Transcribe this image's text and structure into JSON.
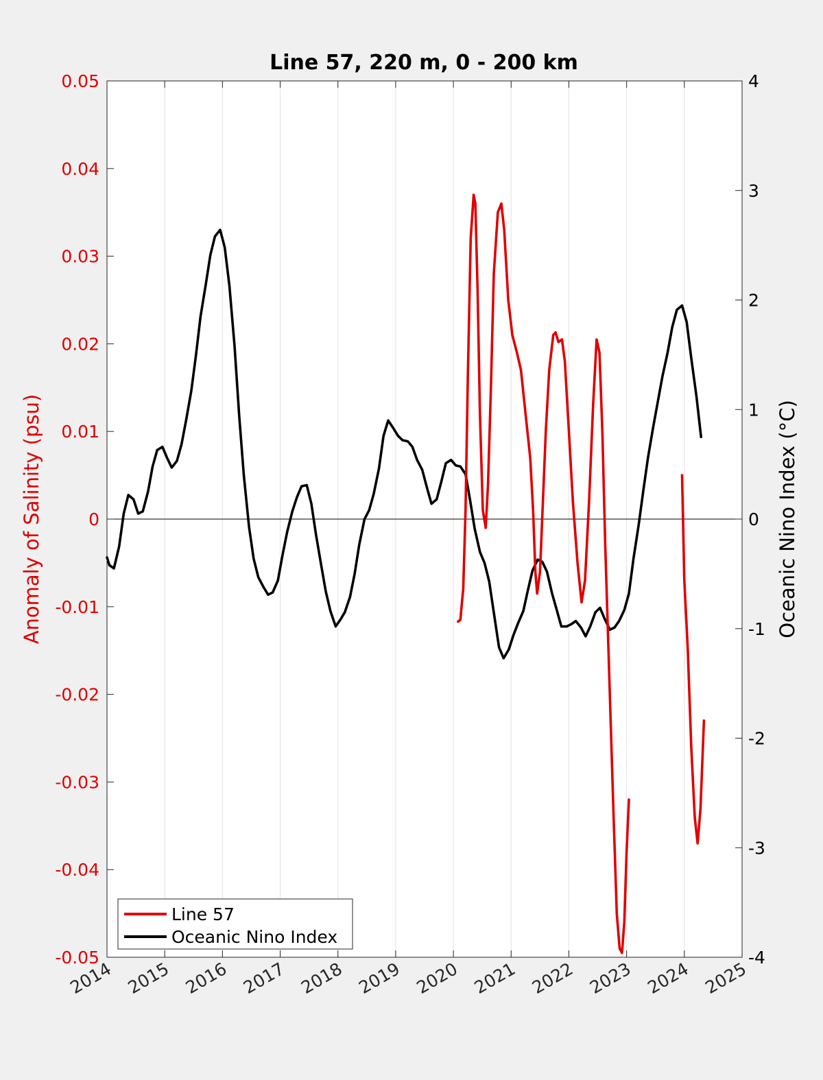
{
  "chart_data": {
    "type": "line",
    "title": "Line 57, 220 m, 0 - 200 km",
    "xlabel": "",
    "ylabel_left": "Anomaly of Salinity (psu)",
    "ylabel_right": "Oceanic Nino Index (°C)",
    "xlim": [
      2014,
      2025
    ],
    "ylim_left": [
      -0.05,
      0.05
    ],
    "ylim_right": [
      -4,
      4
    ],
    "x_ticks": [
      "2014",
      "2015",
      "2016",
      "2017",
      "2018",
      "2019",
      "2020",
      "2021",
      "2022",
      "2023",
      "2024",
      "2025"
    ],
    "y_left_ticks": [
      "0.05",
      "0.04",
      "0.03",
      "0.02",
      "0.01",
      "0",
      "-0.01",
      "-0.02",
      "-0.03",
      "-0.04",
      "-0.05"
    ],
    "y_right_ticks": [
      "4",
      "3",
      "2",
      "1",
      "0",
      "-1",
      "-2",
      "-3",
      "-4"
    ],
    "grid": "vertical only",
    "zero_line": true,
    "legend_position": "bottom-left",
    "colors": {
      "left_axis": "#e00000",
      "right_axis": "#000000",
      "line57": "#e00000",
      "oni": "#000000",
      "plot_bg": "#ffffff",
      "figure_bg": "#f0f0f0",
      "grid": "#e6e6e6"
    },
    "series": [
      {
        "name": "Line 57",
        "axis": "left",
        "points": [
          {
            "x": 2020.08,
            "y": -0.0117
          },
          {
            "x": 2020.12,
            "y": -0.0115
          },
          {
            "x": 2020.17,
            "y": -0.008
          },
          {
            "x": 2020.21,
            "y": 0.001
          },
          {
            "x": 2020.25,
            "y": 0.016
          },
          {
            "x": 2020.3,
            "y": 0.032
          },
          {
            "x": 2020.35,
            "y": 0.037
          },
          {
            "x": 2020.38,
            "y": 0.036
          },
          {
            "x": 2020.42,
            "y": 0.026
          },
          {
            "x": 2020.46,
            "y": 0.012
          },
          {
            "x": 2020.51,
            "y": 0.001
          },
          {
            "x": 2020.56,
            "y": -0.001
          },
          {
            "x": 2020.6,
            "y": 0.004
          },
          {
            "x": 2020.65,
            "y": 0.015
          },
          {
            "x": 2020.7,
            "y": 0.028
          },
          {
            "x": 2020.77,
            "y": 0.035
          },
          {
            "x": 2020.83,
            "y": 0.036
          },
          {
            "x": 2020.88,
            "y": 0.033
          },
          {
            "x": 2020.95,
            "y": 0.025
          },
          {
            "x": 2021.02,
            "y": 0.021
          },
          {
            "x": 2021.1,
            "y": 0.019
          },
          {
            "x": 2021.17,
            "y": 0.017
          },
          {
            "x": 2021.25,
            "y": 0.012
          },
          {
            "x": 2021.33,
            "y": 0.007
          },
          {
            "x": 2021.38,
            "y": 0.001
          },
          {
            "x": 2021.42,
            "y": -0.006
          },
          {
            "x": 2021.45,
            "y": -0.0085
          },
          {
            "x": 2021.5,
            "y": -0.006
          },
          {
            "x": 2021.55,
            "y": 0.002
          },
          {
            "x": 2021.6,
            "y": 0.01
          },
          {
            "x": 2021.66,
            "y": 0.017
          },
          {
            "x": 2021.73,
            "y": 0.021
          },
          {
            "x": 2021.77,
            "y": 0.0213
          },
          {
            "x": 2021.82,
            "y": 0.0202
          },
          {
            "x": 2021.88,
            "y": 0.0205
          },
          {
            "x": 2021.93,
            "y": 0.018
          },
          {
            "x": 2022.0,
            "y": 0.01
          },
          {
            "x": 2022.07,
            "y": 0.002
          },
          {
            "x": 2022.15,
            "y": -0.005
          },
          {
            "x": 2022.22,
            "y": -0.0095
          },
          {
            "x": 2022.28,
            "y": -0.007
          },
          {
            "x": 2022.35,
            "y": 0.002
          },
          {
            "x": 2022.42,
            "y": 0.013
          },
          {
            "x": 2022.48,
            "y": 0.0205
          },
          {
            "x": 2022.53,
            "y": 0.019
          },
          {
            "x": 2022.58,
            "y": 0.01
          },
          {
            "x": 2022.63,
            "y": -0.003
          },
          {
            "x": 2022.7,
            "y": -0.018
          },
          {
            "x": 2022.77,
            "y": -0.033
          },
          {
            "x": 2022.83,
            "y": -0.045
          },
          {
            "x": 2022.88,
            "y": -0.049
          },
          {
            "x": 2022.92,
            "y": -0.0495
          },
          {
            "x": 2022.96,
            "y": -0.046
          },
          {
            "x": 2023.0,
            "y": -0.038
          },
          {
            "x": 2023.04,
            "y": -0.032
          },
          {
            "x": 2023.96,
            "y": 0.005
          },
          {
            "x": 2024.0,
            "y": -0.007
          },
          {
            "x": 2024.06,
            "y": -0.015
          },
          {
            "x": 2024.12,
            "y": -0.026
          },
          {
            "x": 2024.18,
            "y": -0.034
          },
          {
            "x": 2024.23,
            "y": -0.037
          },
          {
            "x": 2024.28,
            "y": -0.033
          },
          {
            "x": 2024.34,
            "y": -0.023
          }
        ]
      },
      {
        "name": "Oceanic Nino Index",
        "axis": "right",
        "points": [
          {
            "x": 2014.0,
            "y": -0.35
          },
          {
            "x": 2014.04,
            "y": -0.42
          },
          {
            "x": 2014.12,
            "y": -0.45
          },
          {
            "x": 2014.21,
            "y": -0.25
          },
          {
            "x": 2014.29,
            "y": 0.05
          },
          {
            "x": 2014.37,
            "y": 0.22
          },
          {
            "x": 2014.46,
            "y": 0.18
          },
          {
            "x": 2014.54,
            "y": 0.05
          },
          {
            "x": 2014.62,
            "y": 0.07
          },
          {
            "x": 2014.71,
            "y": 0.25
          },
          {
            "x": 2014.79,
            "y": 0.48
          },
          {
            "x": 2014.87,
            "y": 0.63
          },
          {
            "x": 2014.96,
            "y": 0.66
          },
          {
            "x": 2015.04,
            "y": 0.56
          },
          {
            "x": 2015.12,
            "y": 0.47
          },
          {
            "x": 2015.21,
            "y": 0.53
          },
          {
            "x": 2015.29,
            "y": 0.68
          },
          {
            "x": 2015.37,
            "y": 0.9
          },
          {
            "x": 2015.46,
            "y": 1.17
          },
          {
            "x": 2015.54,
            "y": 1.49
          },
          {
            "x": 2015.62,
            "y": 1.85
          },
          {
            "x": 2015.71,
            "y": 2.14
          },
          {
            "x": 2015.79,
            "y": 2.41
          },
          {
            "x": 2015.87,
            "y": 2.58
          },
          {
            "x": 2015.96,
            "y": 2.64
          },
          {
            "x": 2016.04,
            "y": 2.48
          },
          {
            "x": 2016.12,
            "y": 2.13
          },
          {
            "x": 2016.21,
            "y": 1.58
          },
          {
            "x": 2016.29,
            "y": 0.94
          },
          {
            "x": 2016.37,
            "y": 0.4
          },
          {
            "x": 2016.46,
            "y": -0.07
          },
          {
            "x": 2016.54,
            "y": -0.36
          },
          {
            "x": 2016.62,
            "y": -0.53
          },
          {
            "x": 2016.71,
            "y": -0.62
          },
          {
            "x": 2016.79,
            "y": -0.69
          },
          {
            "x": 2016.87,
            "y": -0.67
          },
          {
            "x": 2016.96,
            "y": -0.56
          },
          {
            "x": 2017.04,
            "y": -0.33
          },
          {
            "x": 2017.12,
            "y": -0.12
          },
          {
            "x": 2017.21,
            "y": 0.07
          },
          {
            "x": 2017.29,
            "y": 0.2
          },
          {
            "x": 2017.37,
            "y": 0.3
          },
          {
            "x": 2017.46,
            "y": 0.31
          },
          {
            "x": 2017.54,
            "y": 0.14
          },
          {
            "x": 2017.62,
            "y": -0.14
          },
          {
            "x": 2017.71,
            "y": -0.42
          },
          {
            "x": 2017.79,
            "y": -0.66
          },
          {
            "x": 2017.87,
            "y": -0.84
          },
          {
            "x": 2017.96,
            "y": -0.98
          },
          {
            "x": 2018.04,
            "y": -0.92
          },
          {
            "x": 2018.12,
            "y": -0.85
          },
          {
            "x": 2018.21,
            "y": -0.71
          },
          {
            "x": 2018.29,
            "y": -0.5
          },
          {
            "x": 2018.37,
            "y": -0.23
          },
          {
            "x": 2018.46,
            "y": 0.0
          },
          {
            "x": 2018.54,
            "y": 0.08
          },
          {
            "x": 2018.62,
            "y": 0.23
          },
          {
            "x": 2018.71,
            "y": 0.46
          },
          {
            "x": 2018.79,
            "y": 0.76
          },
          {
            "x": 2018.87,
            "y": 0.9
          },
          {
            "x": 2018.96,
            "y": 0.83
          },
          {
            "x": 2019.04,
            "y": 0.76
          },
          {
            "x": 2019.12,
            "y": 0.72
          },
          {
            "x": 2019.21,
            "y": 0.71
          },
          {
            "x": 2019.29,
            "y": 0.66
          },
          {
            "x": 2019.37,
            "y": 0.54
          },
          {
            "x": 2019.46,
            "y": 0.45
          },
          {
            "x": 2019.54,
            "y": 0.29
          },
          {
            "x": 2019.62,
            "y": 0.14
          },
          {
            "x": 2019.71,
            "y": 0.18
          },
          {
            "x": 2019.79,
            "y": 0.34
          },
          {
            "x": 2019.87,
            "y": 0.51
          },
          {
            "x": 2019.96,
            "y": 0.54
          },
          {
            "x": 2020.04,
            "y": 0.49
          },
          {
            "x": 2020.12,
            "y": 0.48
          },
          {
            "x": 2020.21,
            "y": 0.41
          },
          {
            "x": 2020.29,
            "y": 0.17
          },
          {
            "x": 2020.37,
            "y": -0.09
          },
          {
            "x": 2020.46,
            "y": -0.3
          },
          {
            "x": 2020.54,
            "y": -0.4
          },
          {
            "x": 2020.62,
            "y": -0.57
          },
          {
            "x": 2020.71,
            "y": -0.89
          },
          {
            "x": 2020.79,
            "y": -1.17
          },
          {
            "x": 2020.87,
            "y": -1.27
          },
          {
            "x": 2020.96,
            "y": -1.19
          },
          {
            "x": 2021.04,
            "y": -1.06
          },
          {
            "x": 2021.12,
            "y": -0.95
          },
          {
            "x": 2021.21,
            "y": -0.84
          },
          {
            "x": 2021.29,
            "y": -0.65
          },
          {
            "x": 2021.37,
            "y": -0.47
          },
          {
            "x": 2021.46,
            "y": -0.37
          },
          {
            "x": 2021.54,
            "y": -0.39
          },
          {
            "x": 2021.62,
            "y": -0.48
          },
          {
            "x": 2021.71,
            "y": -0.68
          },
          {
            "x": 2021.79,
            "y": -0.83
          },
          {
            "x": 2021.87,
            "y": -0.98
          },
          {
            "x": 2021.96,
            "y": -0.98
          },
          {
            "x": 2022.04,
            "y": -0.96
          },
          {
            "x": 2022.12,
            "y": -0.93
          },
          {
            "x": 2022.21,
            "y": -0.99
          },
          {
            "x": 2022.29,
            "y": -1.07
          },
          {
            "x": 2022.37,
            "y": -0.98
          },
          {
            "x": 2022.46,
            "y": -0.85
          },
          {
            "x": 2022.54,
            "y": -0.81
          },
          {
            "x": 2022.62,
            "y": -0.91
          },
          {
            "x": 2022.71,
            "y": -1.01
          },
          {
            "x": 2022.79,
            "y": -0.99
          },
          {
            "x": 2022.87,
            "y": -0.93
          },
          {
            "x": 2022.96,
            "y": -0.83
          },
          {
            "x": 2023.04,
            "y": -0.68
          },
          {
            "x": 2023.12,
            "y": -0.36
          },
          {
            "x": 2023.21,
            "y": -0.05
          },
          {
            "x": 2023.29,
            "y": 0.26
          },
          {
            "x": 2023.37,
            "y": 0.56
          },
          {
            "x": 2023.46,
            "y": 0.84
          },
          {
            "x": 2023.54,
            "y": 1.07
          },
          {
            "x": 2023.62,
            "y": 1.3
          },
          {
            "x": 2023.71,
            "y": 1.52
          },
          {
            "x": 2023.79,
            "y": 1.75
          },
          {
            "x": 2023.87,
            "y": 1.91
          },
          {
            "x": 2023.96,
            "y": 1.95
          },
          {
            "x": 2024.04,
            "y": 1.8
          },
          {
            "x": 2024.12,
            "y": 1.47
          },
          {
            "x": 2024.21,
            "y": 1.12
          },
          {
            "x": 2024.29,
            "y": 0.75
          }
        ]
      }
    ]
  }
}
